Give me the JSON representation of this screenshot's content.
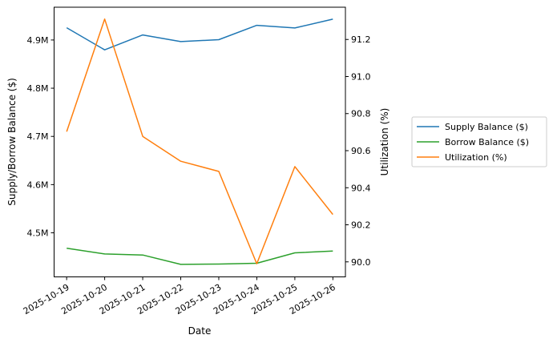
{
  "chart_data": {
    "type": "line",
    "xlabel": "Date",
    "ylabel_left": "Supply/Borrow Balance ($)",
    "ylabel_right": "Utilization (%)",
    "x": [
      "2025-10-19",
      "2025-10-20",
      "2025-10-21",
      "2025-10-22",
      "2025-10-23",
      "2025-10-24",
      "2025-10-25",
      "2025-10-26"
    ],
    "ylim_left": [
      4408600,
      4968000
    ],
    "ylim_right": [
      89.919,
      91.374
    ],
    "yticks_left": [
      {
        "v": 4500000,
        "label": "4.5M"
      },
      {
        "v": 4600000,
        "label": "4.6M"
      },
      {
        "v": 4700000,
        "label": "4.7M"
      },
      {
        "v": 4800000,
        "label": "4.8M"
      },
      {
        "v": 4900000,
        "label": "4.9M"
      }
    ],
    "yticks_right": [
      {
        "v": 90.0,
        "label": "90.0"
      },
      {
        "v": 90.2,
        "label": "90.2"
      },
      {
        "v": 90.4,
        "label": "90.4"
      },
      {
        "v": 90.6,
        "label": "90.6"
      },
      {
        "v": 90.8,
        "label": "90.8"
      },
      {
        "v": 91.0,
        "label": "91.0"
      },
      {
        "v": 91.2,
        "label": "91.2"
      }
    ],
    "grid": false,
    "legend_placement": "outside-right",
    "series": [
      {
        "name": "Supply Balance ($)",
        "axis": "left",
        "color": "#1f77b4",
        "values": [
          4925500,
          4879500,
          4910500,
          4896700,
          4900600,
          4930500,
          4925000,
          4943200
        ]
      },
      {
        "name": "Borrow Balance ($)",
        "axis": "left",
        "color": "#2ca02c",
        "values": [
          4467900,
          4456200,
          4454000,
          4434600,
          4435200,
          4436800,
          4458400,
          4462300
        ]
      },
      {
        "name": "Utilization (%)",
        "axis": "right",
        "color": "#ff7f0e",
        "values": [
          90.703,
          91.31,
          90.677,
          90.543,
          90.488,
          89.99,
          90.514,
          90.256
        ]
      }
    ]
  }
}
